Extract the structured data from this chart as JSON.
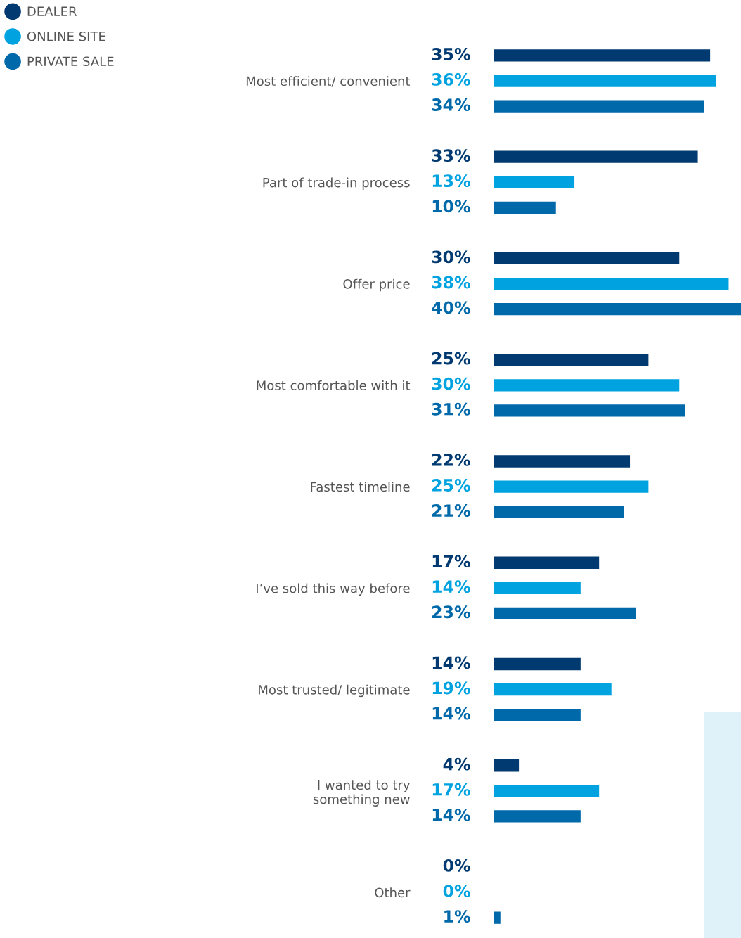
{
  "chart_data": {
    "type": "bar",
    "orientation": "horizontal",
    "legend": "top left",
    "grid": false,
    "tick_labels": "y",
    "xlim": [
      0,
      40
    ],
    "categories": [
      "Most efficient/ convenient",
      "Part of trade-in process",
      "Offer price",
      "Most comfortable with it",
      "Fastest timeline",
      "I’ve sold this way before",
      "Most trusted/ legitimate",
      "I wanted to try\nsomething new",
      "Other"
    ],
    "series": [
      {
        "name": "DEALER",
        "color": "#003a70",
        "values": [
          35,
          33,
          30,
          25,
          22,
          17,
          14,
          4,
          0
        ],
        "value_labels": [
          "35%",
          "33%",
          "30%",
          "25%",
          "22%",
          "17%",
          "14%",
          "4%",
          "0%"
        ]
      },
      {
        "name": "ONLINE SITE",
        "color": "#00a3e0",
        "values": [
          36,
          13,
          38,
          30,
          25,
          14,
          19,
          17,
          0
        ],
        "value_labels": [
          "36%",
          "13%",
          "38%",
          "30%",
          "25%",
          "14%",
          "19%",
          "17%",
          "0%"
        ]
      },
      {
        "name": "PRIVATE SALE",
        "color": "#0069aa",
        "values": [
          34,
          10,
          40,
          31,
          21,
          23,
          14,
          14,
          1
        ],
        "value_labels": [
          "34%",
          "10%",
          "40%",
          "31%",
          "21%",
          "23%",
          "14%",
          "14%",
          "1%"
        ]
      }
    ]
  }
}
